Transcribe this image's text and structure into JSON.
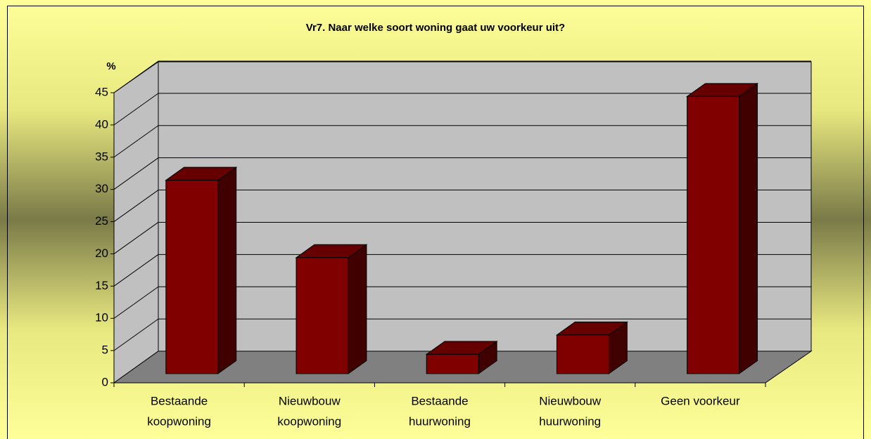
{
  "chart_data": {
    "type": "bar3d",
    "title": "Vr7. Naar welke soort woning gaat uw voorkeur uit?",
    "y_label": "%",
    "categories": [
      [
        "Bestaande",
        "koopwoning"
      ],
      [
        "Nieuwbouw",
        "koopwoning"
      ],
      [
        "Bestaande",
        "huurwoning"
      ],
      [
        "Nieuwbouw",
        "huurwoning"
      ],
      [
        "Geen voorkeur"
      ]
    ],
    "values": [
      30,
      18,
      3,
      6,
      43
    ],
    "color": "#800000",
    "ylim": [
      0,
      45
    ],
    "yticks": [
      0,
      5,
      10,
      15,
      20,
      25,
      30,
      35,
      40,
      45
    ],
    "grid": true
  }
}
